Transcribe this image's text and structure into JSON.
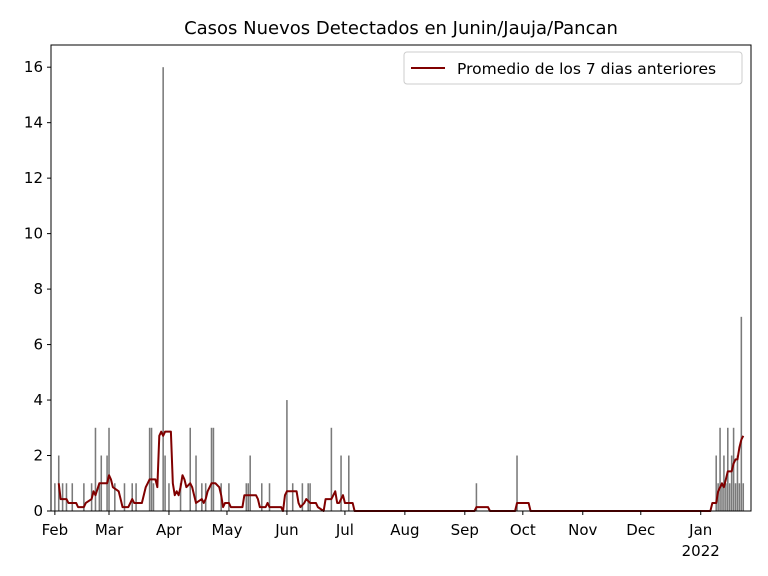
{
  "chart_data": {
    "type": "bar",
    "title": "Casos Nuevos Detectados en Junin/Jauja/Pancan",
    "xlabel": "",
    "ylabel": "",
    "x_range": [
      "2021-01-30",
      "2022-01-27"
    ],
    "ylim": [
      0,
      16.8
    ],
    "y_ticks": [
      0,
      2,
      4,
      6,
      8,
      10,
      12,
      14,
      16
    ],
    "x_ticks": [
      {
        "date": "2021-02-01",
        "label": "Feb"
      },
      {
        "date": "2021-03-01",
        "label": "Mar"
      },
      {
        "date": "2021-04-01",
        "label": "Apr"
      },
      {
        "date": "2021-05-01",
        "label": "May"
      },
      {
        "date": "2021-06-01",
        "label": "Jun"
      },
      {
        "date": "2021-07-01",
        "label": "Jul"
      },
      {
        "date": "2021-08-01",
        "label": "Aug"
      },
      {
        "date": "2021-09-01",
        "label": "Sep"
      },
      {
        "date": "2021-10-01",
        "label": "Oct"
      },
      {
        "date": "2021-11-01",
        "label": "Nov"
      },
      {
        "date": "2021-12-01",
        "label": "Dec"
      },
      {
        "date": "2022-01-01",
        "label": "Jan"
      }
    ],
    "year_label": "2022",
    "grid": false,
    "legend_position": "top-right",
    "bar_color": "#7a7a7a",
    "series": [
      {
        "name": "Promedio de los 7 dias anteriores",
        "type": "line",
        "color": "#800000",
        "points": [
          [
            "2021-02-03",
            1.0
          ],
          [
            "2021-02-04",
            0.43
          ],
          [
            "2021-02-07",
            0.43
          ],
          [
            "2021-02-08",
            0.29
          ],
          [
            "2021-02-12",
            0.29
          ],
          [
            "2021-02-13",
            0.14
          ],
          [
            "2021-02-16",
            0.14
          ],
          [
            "2021-02-17",
            0.29
          ],
          [
            "2021-02-20",
            0.43
          ],
          [
            "2021-02-21",
            0.71
          ],
          [
            "2021-02-22",
            0.57
          ],
          [
            "2021-02-24",
            1.0
          ],
          [
            "2021-02-28",
            1.0
          ],
          [
            "2021-03-01",
            1.29
          ],
          [
            "2021-03-02",
            1.14
          ],
          [
            "2021-03-03",
            0.86
          ],
          [
            "2021-03-06",
            0.71
          ],
          [
            "2021-03-07",
            0.43
          ],
          [
            "2021-03-08",
            0.14
          ],
          [
            "2021-03-11",
            0.14
          ],
          [
            "2021-03-13",
            0.43
          ],
          [
            "2021-03-14",
            0.29
          ],
          [
            "2021-03-18",
            0.29
          ],
          [
            "2021-03-20",
            0.86
          ],
          [
            "2021-03-21",
            1.0
          ],
          [
            "2021-03-22",
            1.14
          ],
          [
            "2021-03-25",
            1.14
          ],
          [
            "2021-03-26",
            0.86
          ],
          [
            "2021-03-27",
            2.71
          ],
          [
            "2021-03-28",
            2.86
          ],
          [
            "2021-03-29",
            2.71
          ],
          [
            "2021-03-30",
            2.86
          ],
          [
            "2021-04-02",
            2.86
          ],
          [
            "2021-04-03",
            1.0
          ],
          [
            "2021-04-04",
            0.57
          ],
          [
            "2021-04-05",
            0.71
          ],
          [
            "2021-04-06",
            0.57
          ],
          [
            "2021-04-07",
            0.86
          ],
          [
            "2021-04-08",
            1.29
          ],
          [
            "2021-04-09",
            1.14
          ],
          [
            "2021-04-10",
            0.86
          ],
          [
            "2021-04-12",
            1.0
          ],
          [
            "2021-04-13",
            0.86
          ],
          [
            "2021-04-14",
            0.57
          ],
          [
            "2021-04-15",
            0.29
          ],
          [
            "2021-04-18",
            0.43
          ],
          [
            "2021-04-19",
            0.29
          ],
          [
            "2021-04-20",
            0.43
          ],
          [
            "2021-04-21",
            0.71
          ],
          [
            "2021-04-23",
            1.0
          ],
          [
            "2021-04-25",
            1.0
          ],
          [
            "2021-04-27",
            0.86
          ],
          [
            "2021-04-28",
            0.57
          ],
          [
            "2021-04-29",
            0.14
          ],
          [
            "2021-04-30",
            0.29
          ],
          [
            "2021-05-02",
            0.29
          ],
          [
            "2021-05-03",
            0.14
          ],
          [
            "2021-05-09",
            0.14
          ],
          [
            "2021-05-10",
            0.57
          ],
          [
            "2021-05-16",
            0.57
          ],
          [
            "2021-05-17",
            0.43
          ],
          [
            "2021-05-18",
            0.14
          ],
          [
            "2021-05-21",
            0.14
          ],
          [
            "2021-05-22",
            0.29
          ],
          [
            "2021-05-23",
            0.14
          ],
          [
            "2021-05-29",
            0.14
          ],
          [
            "2021-05-30",
            0.0
          ],
          [
            "2021-05-31",
            0.57
          ],
          [
            "2021-06-01",
            0.71
          ],
          [
            "2021-06-06",
            0.71
          ],
          [
            "2021-06-07",
            0.29
          ],
          [
            "2021-06-08",
            0.14
          ],
          [
            "2021-06-10",
            0.29
          ],
          [
            "2021-06-11",
            0.43
          ],
          [
            "2021-06-13",
            0.29
          ],
          [
            "2021-06-16",
            0.29
          ],
          [
            "2021-06-17",
            0.14
          ],
          [
            "2021-06-20",
            0.0
          ],
          [
            "2021-06-21",
            0.43
          ],
          [
            "2021-06-24",
            0.43
          ],
          [
            "2021-06-26",
            0.71
          ],
          [
            "2021-06-27",
            0.29
          ],
          [
            "2021-06-28",
            0.29
          ],
          [
            "2021-06-30",
            0.57
          ],
          [
            "2021-07-01",
            0.29
          ],
          [
            "2021-07-05",
            0.29
          ],
          [
            "2021-07-06",
            0.0
          ],
          [
            "2021-09-06",
            0.0
          ],
          [
            "2021-09-07",
            0.14
          ],
          [
            "2021-09-13",
            0.14
          ],
          [
            "2021-09-14",
            0.0
          ],
          [
            "2021-09-27",
            0.0
          ],
          [
            "2021-09-28",
            0.29
          ],
          [
            "2021-10-04",
            0.29
          ],
          [
            "2021-10-05",
            0.0
          ],
          [
            "2022-01-06",
            0.0
          ],
          [
            "2022-01-07",
            0.29
          ],
          [
            "2022-01-09",
            0.29
          ],
          [
            "2022-01-10",
            0.71
          ],
          [
            "2022-01-12",
            1.0
          ],
          [
            "2022-01-13",
            0.86
          ],
          [
            "2022-01-14",
            1.14
          ],
          [
            "2022-01-15",
            1.43
          ],
          [
            "2022-01-17",
            1.43
          ],
          [
            "2022-01-18",
            1.71
          ],
          [
            "2022-01-19",
            1.86
          ],
          [
            "2022-01-20",
            1.86
          ],
          [
            "2022-01-21",
            2.29
          ],
          [
            "2022-01-22",
            2.57
          ],
          [
            "2022-01-23",
            2.71
          ]
        ]
      }
    ],
    "bars": [
      [
        "2021-02-01",
        1
      ],
      [
        "2021-02-03",
        2
      ],
      [
        "2021-02-05",
        1
      ],
      [
        "2021-02-07",
        1
      ],
      [
        "2021-02-10",
        1
      ],
      [
        "2021-02-16",
        1
      ],
      [
        "2021-02-20",
        1
      ],
      [
        "2021-02-22",
        3
      ],
      [
        "2021-02-24",
        1
      ],
      [
        "2021-02-25",
        2
      ],
      [
        "2021-02-28",
        2
      ],
      [
        "2021-03-01",
        3
      ],
      [
        "2021-03-04",
        1
      ],
      [
        "2021-03-09",
        1
      ],
      [
        "2021-03-13",
        1
      ],
      [
        "2021-03-15",
        1
      ],
      [
        "2021-03-22",
        3
      ],
      [
        "2021-03-23",
        3
      ],
      [
        "2021-03-24",
        1
      ],
      [
        "2021-03-29",
        16
      ],
      [
        "2021-03-30",
        2
      ],
      [
        "2021-04-01",
        1
      ],
      [
        "2021-04-07",
        1
      ],
      [
        "2021-04-12",
        3
      ],
      [
        "2021-04-15",
        2
      ],
      [
        "2021-04-18",
        1
      ],
      [
        "2021-04-20",
        1
      ],
      [
        "2021-04-23",
        3
      ],
      [
        "2021-04-24",
        3
      ],
      [
        "2021-04-28",
        1
      ],
      [
        "2021-05-02",
        1
      ],
      [
        "2021-05-11",
        1
      ],
      [
        "2021-05-12",
        1
      ],
      [
        "2021-05-13",
        2
      ],
      [
        "2021-05-19",
        1
      ],
      [
        "2021-05-23",
        1
      ],
      [
        "2021-06-01",
        4
      ],
      [
        "2021-06-04",
        1
      ],
      [
        "2021-06-09",
        1
      ],
      [
        "2021-06-12",
        1
      ],
      [
        "2021-06-13",
        1
      ],
      [
        "2021-06-24",
        3
      ],
      [
        "2021-06-29",
        2
      ],
      [
        "2021-07-03",
        2
      ],
      [
        "2021-09-07",
        1
      ],
      [
        "2021-09-28",
        2
      ],
      [
        "2022-01-09",
        2
      ],
      [
        "2022-01-10",
        1
      ],
      [
        "2022-01-11",
        3
      ],
      [
        "2022-01-12",
        1
      ],
      [
        "2022-01-13",
        2
      ],
      [
        "2022-01-14",
        1
      ],
      [
        "2022-01-15",
        3
      ],
      [
        "2022-01-16",
        1
      ],
      [
        "2022-01-17",
        2
      ],
      [
        "2022-01-18",
        3
      ],
      [
        "2022-01-19",
        1
      ],
      [
        "2022-01-20",
        2
      ],
      [
        "2022-01-21",
        1
      ],
      [
        "2022-01-22",
        7
      ],
      [
        "2022-01-23",
        1
      ]
    ]
  }
}
